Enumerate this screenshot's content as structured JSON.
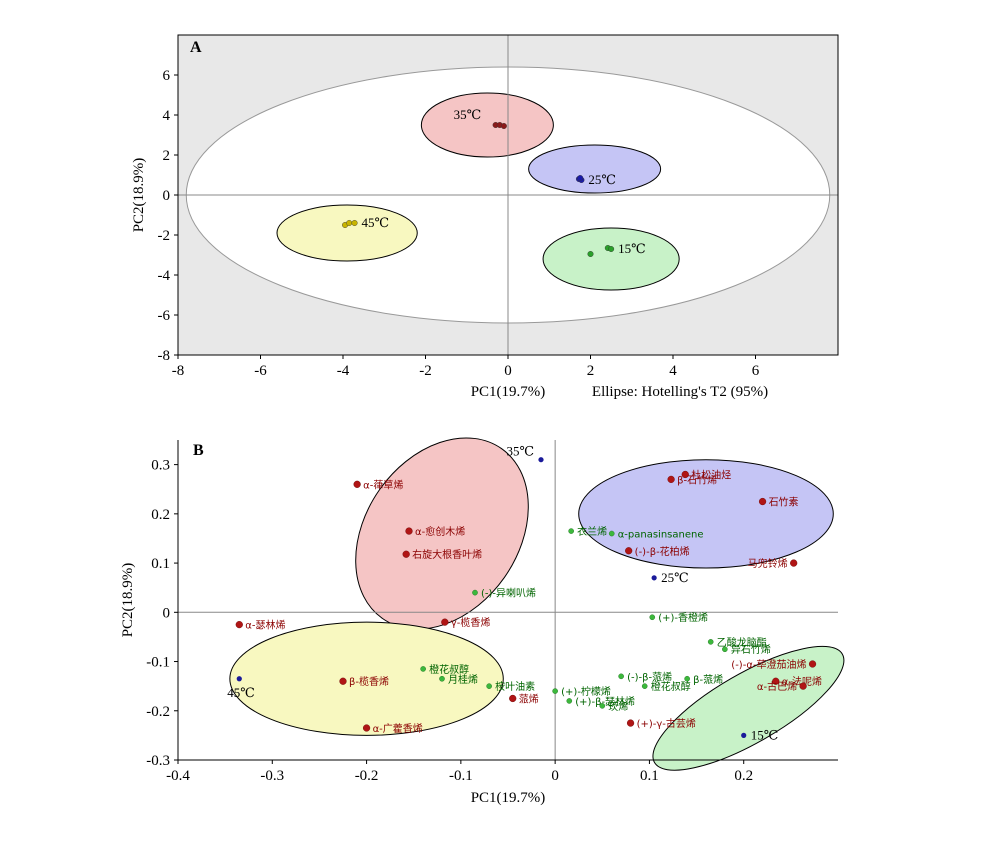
{
  "chart_data": [
    {
      "type": "scatter",
      "panel_label": "A",
      "xlabel": "PC1(19.7%)",
      "ylabel": "PC2(18.9%)",
      "note": "Ellipse: Hotelling's T2 (95%)",
      "xlim": [
        -8,
        8
      ],
      "ylim": [
        -8,
        8
      ],
      "xticks": [
        -8,
        -6,
        -4,
        -2,
        0,
        2,
        4,
        6
      ],
      "yticks": [
        6,
        4,
        2,
        0,
        -2,
        -4,
        -6,
        -8
      ],
      "hotelling_ellipse": {
        "cx": 0,
        "cy": 0,
        "rx": 7.8,
        "ry": 6.4
      },
      "groups": [
        {
          "name": "35℃",
          "color": "#8b1a1a",
          "ellipse_fill": "#f5c5c5",
          "ellipse": {
            "cx": -0.5,
            "cy": 3.5,
            "rx": 1.6,
            "ry": 1.6
          },
          "points": [
            [
              -0.3,
              3.5
            ],
            [
              -0.2,
              3.5
            ],
            [
              -0.1,
              3.45
            ]
          ]
        },
        {
          "name": "25℃",
          "color": "#1a1aa8",
          "ellipse_fill": "#c5c5f5",
          "ellipse": {
            "cx": 2.1,
            "cy": 1.3,
            "rx": 1.6,
            "ry": 1.2
          },
          "points": [
            [
              1.72,
              0.8
            ],
            [
              1.78,
              0.75
            ],
            [
              1.75,
              0.85
            ]
          ]
        },
        {
          "name": "45℃",
          "color": "#c8b400",
          "ellipse_fill": "#f8f8c0",
          "ellipse": {
            "cx": -3.9,
            "cy": -1.9,
            "rx": 1.7,
            "ry": 1.4
          },
          "points": [
            [
              -3.95,
              -1.5
            ],
            [
              -3.85,
              -1.4
            ],
            [
              -3.72,
              -1.4
            ]
          ]
        },
        {
          "name": "15℃",
          "color": "#2aa02a",
          "ellipse_fill": "#c8f2c8",
          "ellipse": {
            "cx": 2.5,
            "cy": -3.2,
            "rx": 1.65,
            "ry": 1.55
          },
          "points": [
            [
              2.0,
              -2.95
            ],
            [
              2.42,
              -2.65
            ],
            [
              2.5,
              -2.7
            ]
          ]
        }
      ]
    },
    {
      "type": "scatter",
      "panel_label": "B",
      "xlabel": "PC1(19.7%)",
      "ylabel": "PC2(18.9%)",
      "xlim": [
        -0.4,
        0.3
      ],
      "ylim": [
        -0.3,
        0.35
      ],
      "xticks": [
        -0.4,
        -0.3,
        -0.2,
        -0.1,
        0,
        0.1,
        0.2
      ],
      "yticks": [
        0.3,
        0.2,
        0.1,
        0,
        -0.1,
        -0.2,
        -0.3
      ],
      "ellipses": [
        {
          "fill": "#f5c5c5",
          "cx": -0.12,
          "cy": 0.16,
          "rx": 0.11,
          "ry": 0.155,
          "angle": 55
        },
        {
          "fill": "#c5c5f5",
          "cx": 0.16,
          "cy": 0.2,
          "rx": 0.135,
          "ry": 0.11,
          "angle": 0
        },
        {
          "fill": "#f8f8c0",
          "cx": -0.2,
          "cy": -0.135,
          "rx": 0.145,
          "ry": 0.115,
          "angle": 0
        },
        {
          "fill": "#c8f2c8",
          "cx": 0.205,
          "cy": -0.195,
          "rx": 0.115,
          "ry": 0.07,
          "angle": 30
        }
      ],
      "samples": [
        {
          "label": "35℃",
          "x": -0.015,
          "y": 0.31
        },
        {
          "label": "25℃",
          "x": 0.105,
          "y": 0.07
        },
        {
          "label": "45℃",
          "x": -0.335,
          "y": -0.135
        },
        {
          "label": "15℃",
          "x": 0.2,
          "y": -0.25
        }
      ],
      "variables": [
        {
          "label": "α-葎草烯",
          "x": -0.21,
          "y": 0.26,
          "group": "red"
        },
        {
          "label": "α-愈创木烯",
          "x": -0.155,
          "y": 0.165,
          "group": "red"
        },
        {
          "label": "右旋大根香叶烯",
          "x": -0.158,
          "y": 0.118,
          "group": "red"
        },
        {
          "label": "α-瑟林烯",
          "x": -0.335,
          "y": -0.025,
          "group": "red"
        },
        {
          "label": "γ-榄香烯",
          "x": -0.117,
          "y": -0.02,
          "group": "red"
        },
        {
          "label": "β-榄香烯",
          "x": -0.225,
          "y": -0.14,
          "group": "red"
        },
        {
          "label": "α-广藿香烯",
          "x": -0.2,
          "y": -0.235,
          "group": "red"
        },
        {
          "label": "蒎烯",
          "x": -0.045,
          "y": -0.175,
          "group": "red"
        },
        {
          "label": "杜松油烃",
          "x": 0.138,
          "y": 0.28,
          "group": "red"
        },
        {
          "label": "β-石竹烯",
          "x": 0.123,
          "y": 0.27,
          "group": "red"
        },
        {
          "label": "石竹素",
          "x": 0.22,
          "y": 0.225,
          "group": "red"
        },
        {
          "label": "(-)-β-花柏烯",
          "x": 0.078,
          "y": 0.125,
          "group": "red"
        },
        {
          "label": "马兜铃烯",
          "x": 0.253,
          "y": 0.1,
          "group": "red"
        },
        {
          "label": "(-)-α-荜澄茄油烯",
          "x": 0.273,
          "y": -0.105,
          "group": "red"
        },
        {
          "label": "α-法呢烯",
          "x": 0.234,
          "y": -0.14,
          "group": "red"
        },
        {
          "label": "α-古巴烯",
          "x": 0.263,
          "y": -0.15,
          "group": "red"
        },
        {
          "label": "(+)-γ-古芸烯",
          "x": 0.08,
          "y": -0.225,
          "group": "red"
        },
        {
          "label": "衣兰烯",
          "x": 0.017,
          "y": 0.165,
          "group": "green"
        },
        {
          "label": "α-panasinsanene",
          "x": 0.06,
          "y": 0.16,
          "group": "green"
        },
        {
          "label": "(-)-异喇叭烯",
          "x": -0.085,
          "y": 0.04,
          "group": "green"
        },
        {
          "label": "(+)-香橙烯",
          "x": 0.103,
          "y": -0.01,
          "group": "green"
        },
        {
          "label": "乙酸龙脑酯",
          "x": 0.165,
          "y": -0.06,
          "group": "green"
        },
        {
          "label": "异石竹烯",
          "x": 0.18,
          "y": -0.075,
          "group": "green"
        },
        {
          "label": "橙花叔醇",
          "x": -0.14,
          "y": -0.115,
          "group": "green"
        },
        {
          "label": "月桂烯",
          "x": -0.12,
          "y": -0.135,
          "group": "green"
        },
        {
          "label": "桉叶油素",
          "x": -0.07,
          "y": -0.15,
          "group": "green"
        },
        {
          "label": "(+)-柠檬烯",
          "x": 0.0,
          "y": -0.16,
          "group": "green"
        },
        {
          "label": "(-)-β-蒎烯",
          "x": 0.07,
          "y": -0.13,
          "group": "green"
        },
        {
          "label": "β-蒎烯",
          "x": 0.14,
          "y": -0.135,
          "group": "green"
        },
        {
          "label": "橙花叔醇",
          "x": 0.095,
          "y": -0.15,
          "group": "green"
        },
        {
          "label": "(+)-β-瑟林烯",
          "x": 0.015,
          "y": -0.18,
          "group": "green"
        },
        {
          "label": "莰烯",
          "x": 0.05,
          "y": -0.19,
          "group": "green"
        }
      ]
    }
  ],
  "colors": {
    "outer_bg": "#e8e8e8",
    "plot_bg": "#ffffff",
    "red_marker": "#b01515",
    "green_marker": "#3cb83c",
    "sample_marker": "#1a1a9a",
    "red_label": "#8b0000",
    "green_label": "#006400"
  }
}
